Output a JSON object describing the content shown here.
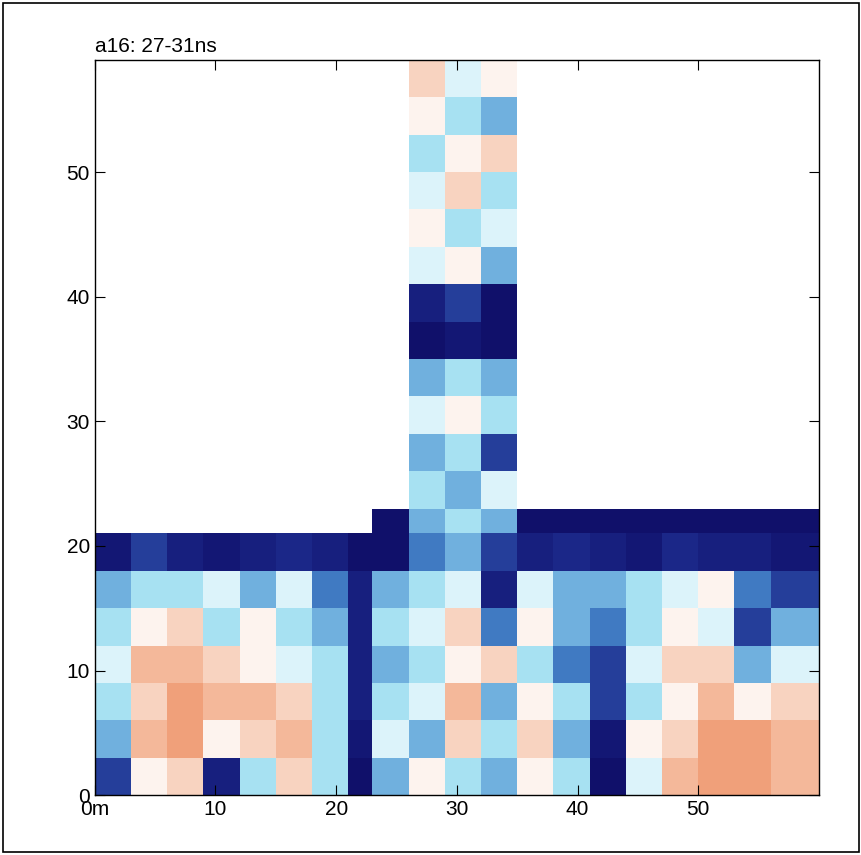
{
  "chart_data": {
    "type": "heatmap",
    "title": "a16: 27-31ns",
    "xlim": [
      0,
      60
    ],
    "ylim": [
      0,
      59
    ],
    "xticks": [
      {
        "value": 0,
        "label": "0m"
      },
      10,
      20,
      30,
      40,
      50
    ],
    "yticks": [
      0,
      10,
      20,
      30,
      40,
      50
    ],
    "grid": false,
    "color_range": [
      0,
      1
    ],
    "x_edges": [
      0,
      3,
      6,
      9,
      12,
      15,
      18,
      21,
      23,
      26,
      29,
      32,
      35,
      38,
      41,
      44,
      47,
      50,
      53,
      56,
      60
    ],
    "y_edges": [
      0,
      3,
      6,
      9,
      12,
      15,
      18,
      21,
      23,
      26,
      29,
      32,
      35,
      38,
      41,
      44,
      47,
      50,
      53,
      56,
      59
    ],
    "cells": [
      [
        0.8,
        0.3,
        0.2,
        0.9,
        0.5,
        0.2,
        0.5,
        1.0,
        0.6,
        0.3,
        0.5,
        0.6,
        0.3,
        0.5,
        1.0,
        0.4,
        0.1,
        0.0,
        0.0,
        0.1
      ],
      [
        0.6,
        0.1,
        0.0,
        0.3,
        0.2,
        0.1,
        0.5,
        0.95,
        0.4,
        0.6,
        0.2,
        0.5,
        0.2,
        0.6,
        0.95,
        0.3,
        0.2,
        0.0,
        0.0,
        0.1
      ],
      [
        0.5,
        0.2,
        0.0,
        0.1,
        0.1,
        0.2,
        0.5,
        0.9,
        0.5,
        0.4,
        0.1,
        0.6,
        0.3,
        0.5,
        0.8,
        0.5,
        0.3,
        0.1,
        0.3,
        0.2
      ],
      [
        0.4,
        0.1,
        0.1,
        0.2,
        0.3,
        0.4,
        0.5,
        0.9,
        0.6,
        0.5,
        0.3,
        0.2,
        0.5,
        0.7,
        0.8,
        0.4,
        0.2,
        0.2,
        0.6,
        0.4
      ],
      [
        0.5,
        0.3,
        0.2,
        0.5,
        0.3,
        0.5,
        0.6,
        0.9,
        0.5,
        0.4,
        0.2,
        0.7,
        0.3,
        0.6,
        0.7,
        0.5,
        0.3,
        0.4,
        0.8,
        0.6
      ],
      [
        0.6,
        0.5,
        0.5,
        0.4,
        0.6,
        0.4,
        0.7,
        0.9,
        0.6,
        0.5,
        0.4,
        0.9,
        0.4,
        0.6,
        0.6,
        0.5,
        0.4,
        0.3,
        0.7,
        0.8
      ],
      [
        0.95,
        0.8,
        0.9,
        0.95,
        0.9,
        0.85,
        0.9,
        1.0,
        1.0,
        0.7,
        0.6,
        0.8,
        0.9,
        0.85,
        0.9,
        0.95,
        0.85,
        0.9,
        0.9,
        0.95
      ],
      [
        null,
        null,
        null,
        null,
        null,
        null,
        null,
        null,
        1.0,
        0.6,
        0.5,
        0.6,
        1.0,
        1.0,
        1.0,
        1.0,
        1.0,
        1.0,
        1.0,
        1.0
      ],
      [
        null,
        null,
        null,
        null,
        null,
        null,
        null,
        null,
        null,
        0.5,
        0.6,
        0.4,
        null,
        null,
        null,
        null,
        null,
        null,
        null,
        null
      ],
      [
        null,
        null,
        null,
        null,
        null,
        null,
        null,
        null,
        null,
        0.6,
        0.5,
        0.8,
        null,
        null,
        null,
        null,
        null,
        null,
        null,
        null
      ],
      [
        null,
        null,
        null,
        null,
        null,
        null,
        null,
        null,
        null,
        0.4,
        0.3,
        0.5,
        null,
        null,
        null,
        null,
        null,
        null,
        null,
        null
      ],
      [
        null,
        null,
        null,
        null,
        null,
        null,
        null,
        null,
        null,
        0.6,
        0.5,
        0.6,
        null,
        null,
        null,
        null,
        null,
        null,
        null,
        null
      ],
      [
        null,
        null,
        null,
        null,
        null,
        null,
        null,
        null,
        null,
        1.0,
        0.95,
        1.0,
        null,
        null,
        null,
        null,
        null,
        null,
        null,
        null
      ],
      [
        null,
        null,
        null,
        null,
        null,
        null,
        null,
        null,
        null,
        0.9,
        0.8,
        1.0,
        null,
        null,
        null,
        null,
        null,
        null,
        null,
        null
      ],
      [
        null,
        null,
        null,
        null,
        null,
        null,
        null,
        null,
        null,
        0.4,
        0.3,
        0.6,
        null,
        null,
        null,
        null,
        null,
        null,
        null,
        null
      ],
      [
        null,
        null,
        null,
        null,
        null,
        null,
        null,
        null,
        null,
        0.3,
        0.5,
        0.4,
        null,
        null,
        null,
        null,
        null,
        null,
        null,
        null
      ],
      [
        null,
        null,
        null,
        null,
        null,
        null,
        null,
        null,
        null,
        0.4,
        0.2,
        0.5,
        null,
        null,
        null,
        null,
        null,
        null,
        null,
        null
      ],
      [
        null,
        null,
        null,
        null,
        null,
        null,
        null,
        null,
        null,
        0.5,
        0.3,
        0.2,
        null,
        null,
        null,
        null,
        null,
        null,
        null,
        null
      ],
      [
        null,
        null,
        null,
        null,
        null,
        null,
        null,
        null,
        null,
        0.3,
        0.5,
        0.6,
        null,
        null,
        null,
        null,
        null,
        null,
        null,
        null
      ],
      [
        null,
        null,
        null,
        null,
        null,
        null,
        null,
        null,
        null,
        0.2,
        0.4,
        0.3,
        null,
        null,
        null,
        null,
        null,
        null,
        null,
        null
      ]
    ]
  }
}
